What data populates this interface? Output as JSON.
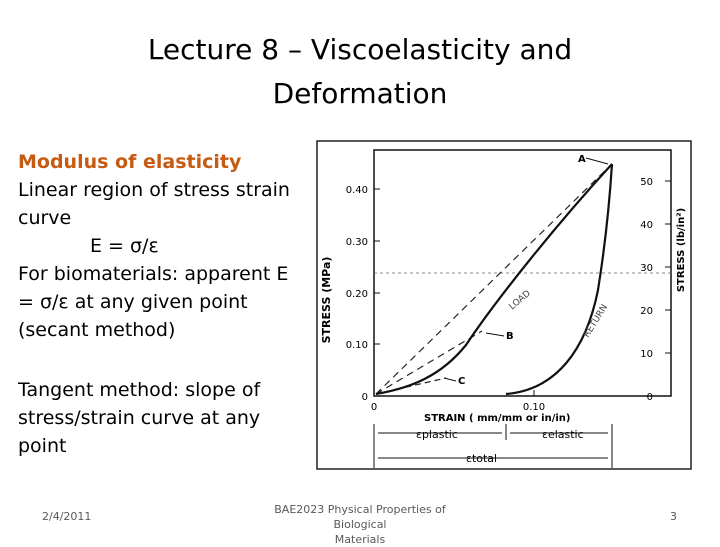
{
  "slide": {
    "title_lines": [
      "Lecture 8 – Viscoelasticity and",
      "Deformation"
    ],
    "body": {
      "heading": "Modulus of elasticity",
      "lines": [
        "Linear region of stress strain",
        "curve",
        "E = σ/ε",
        "For biomaterials: apparent E",
        "= σ/ε at any given point",
        "(secant method)"
      ],
      "tangent_lines": [
        "Tangent method: slope of",
        "stress/strain curve at any",
        "point"
      ]
    },
    "footer": {
      "date": "2/4/2011",
      "course_lines": [
        "BAE2023 Physical Properties of Biological",
        "Materials"
      ],
      "page": "3"
    }
  },
  "figure": {
    "left_axis_label": "STRESS (MPa)",
    "right_axis_label": "STRESS (lb/in²)",
    "left_ticks": [
      "0.40",
      "0.30",
      "0.20",
      "0.10",
      "0"
    ],
    "right_ticks": [
      "50",
      "40",
      "30",
      "20",
      "10",
      "0"
    ],
    "x_ticks": [
      "0",
      "0.10"
    ],
    "x_axis_label": "STRAIN ( mm/mm or in/in)",
    "points": [
      "A",
      "B",
      "C"
    ],
    "curve_labels": [
      "LOAD",
      "RETURN"
    ],
    "strain_labels": [
      "εplastic",
      "εelastic",
      "εtotal"
    ]
  }
}
